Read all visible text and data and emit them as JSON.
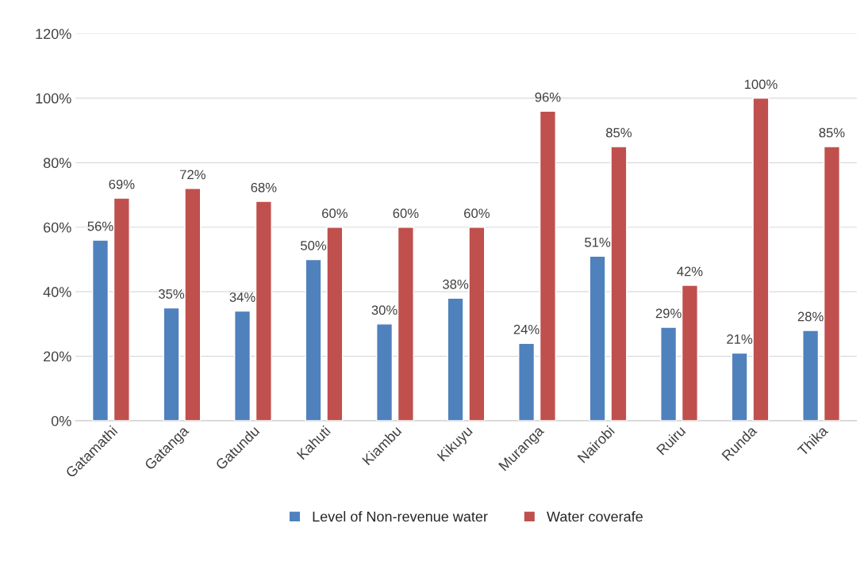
{
  "chart_data": {
    "type": "bar",
    "categories": [
      "Gatamathi",
      "Gatanga",
      "Gatundu",
      "Kahuti",
      "Kiambu",
      "Kikuyu",
      "Muranga",
      "Nairobi",
      "Ruiru",
      "Runda",
      "Thika"
    ],
    "series": [
      {
        "name": "Level of Non-revenue water",
        "color": "#4f81bd",
        "values": [
          56,
          35,
          34,
          50,
          30,
          38,
          24,
          51,
          29,
          21,
          28
        ],
        "value_labels": [
          "56%",
          "35%",
          "34%",
          "50%",
          "30%",
          "38%",
          "24%",
          "51%",
          "29%",
          "21%",
          "28%"
        ]
      },
      {
        "name": "Water coverafe",
        "color": "#c0504d",
        "values": [
          69,
          72,
          68,
          60,
          60,
          60,
          96,
          85,
          42,
          100,
          85
        ],
        "value_labels": [
          "69%",
          "72%",
          "68%",
          "60%",
          "60%",
          "60%",
          "96%",
          "85%",
          "42%",
          "100%",
          "85%"
        ]
      }
    ],
    "ylim": [
      0,
      120
    ],
    "yticks": [
      {
        "value": 0,
        "label": "0%"
      },
      {
        "value": 20,
        "label": "20%"
      },
      {
        "value": 40,
        "label": "40%"
      },
      {
        "value": 60,
        "label": "60%"
      },
      {
        "value": 80,
        "label": "80%"
      },
      {
        "value": 100,
        "label": "100%"
      },
      {
        "value": 120,
        "label": "120%"
      }
    ],
    "grid": "y",
    "legend": "bottom"
  }
}
